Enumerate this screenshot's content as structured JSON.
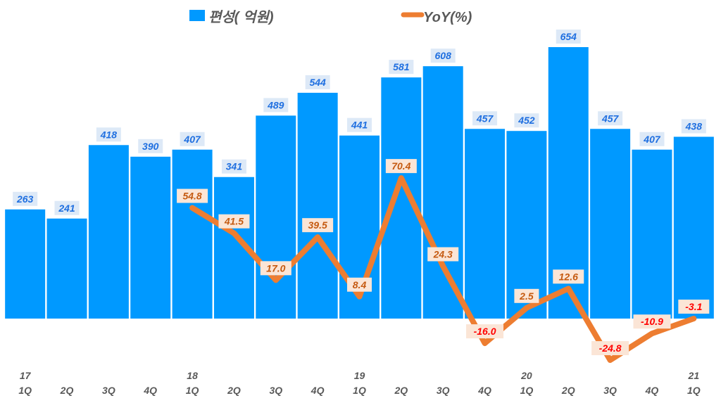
{
  "chart_data": {
    "type": "bar+line",
    "categories": [
      "17 1Q",
      "2Q",
      "3Q",
      "4Q",
      "18 1Q",
      "2Q",
      "3Q",
      "4Q",
      "19 1Q",
      "2Q",
      "3Q",
      "4Q",
      "20 1Q",
      "2Q",
      "3Q",
      "4Q",
      "21 1Q"
    ],
    "tick_labels": [
      {
        "year": "17",
        "q": "1Q"
      },
      {
        "year": "",
        "q": "2Q"
      },
      {
        "year": "",
        "q": "3Q"
      },
      {
        "year": "",
        "q": "4Q"
      },
      {
        "year": "18",
        "q": "1Q"
      },
      {
        "year": "",
        "q": "2Q"
      },
      {
        "year": "",
        "q": "3Q"
      },
      {
        "year": "",
        "q": "4Q"
      },
      {
        "year": "19",
        "q": "1Q"
      },
      {
        "year": "",
        "q": "2Q"
      },
      {
        "year": "",
        "q": "3Q"
      },
      {
        "year": "",
        "q": "4Q"
      },
      {
        "year": "20",
        "q": "1Q"
      },
      {
        "year": "",
        "q": "2Q"
      },
      {
        "year": "",
        "q": "3Q"
      },
      {
        "year": "",
        "q": "4Q"
      },
      {
        "year": "21",
        "q": "1Q"
      }
    ],
    "series": [
      {
        "name": "편성( 억원)",
        "type": "bar",
        "axis": "left",
        "color": "#0099ff",
        "values": [
          263,
          241,
          418,
          390,
          407,
          341,
          489,
          544,
          441,
          581,
          608,
          457,
          452,
          654,
          457,
          407,
          438
        ],
        "labels": [
          "263",
          "241",
          "418",
          "390",
          "407",
          "341",
          "489",
          "544",
          "441",
          "581",
          "608",
          "457",
          "452",
          "654",
          "457",
          "407",
          "438"
        ]
      },
      {
        "name": "YoY(%)",
        "type": "line",
        "axis": "right",
        "color": "#ed7d31",
        "values": [
          null,
          null,
          null,
          null,
          54.8,
          41.5,
          17.0,
          39.5,
          8.4,
          70.4,
          24.3,
          -16.0,
          2.5,
          12.6,
          -24.8,
          -10.9,
          -3.1
        ],
        "labels": [
          "",
          "",
          "",
          "",
          "54.8",
          "41.5",
          "17.0",
          "39.5",
          "8.4",
          "70.4",
          "24.3",
          "-16.0",
          "2.5",
          "12.6",
          "-24.8",
          "-10.9",
          "-3.1"
        ]
      }
    ],
    "legend_position": "top",
    "grid": false,
    "axes_visible": false,
    "colors": {
      "bar_label_text": "#1f6fe0",
      "bar_label_bg": "#dde9f7",
      "line_label_pos": "#c55a11",
      "line_label_neg": "#ff0000",
      "line_label_bg": "#fbe5d6"
    }
  }
}
